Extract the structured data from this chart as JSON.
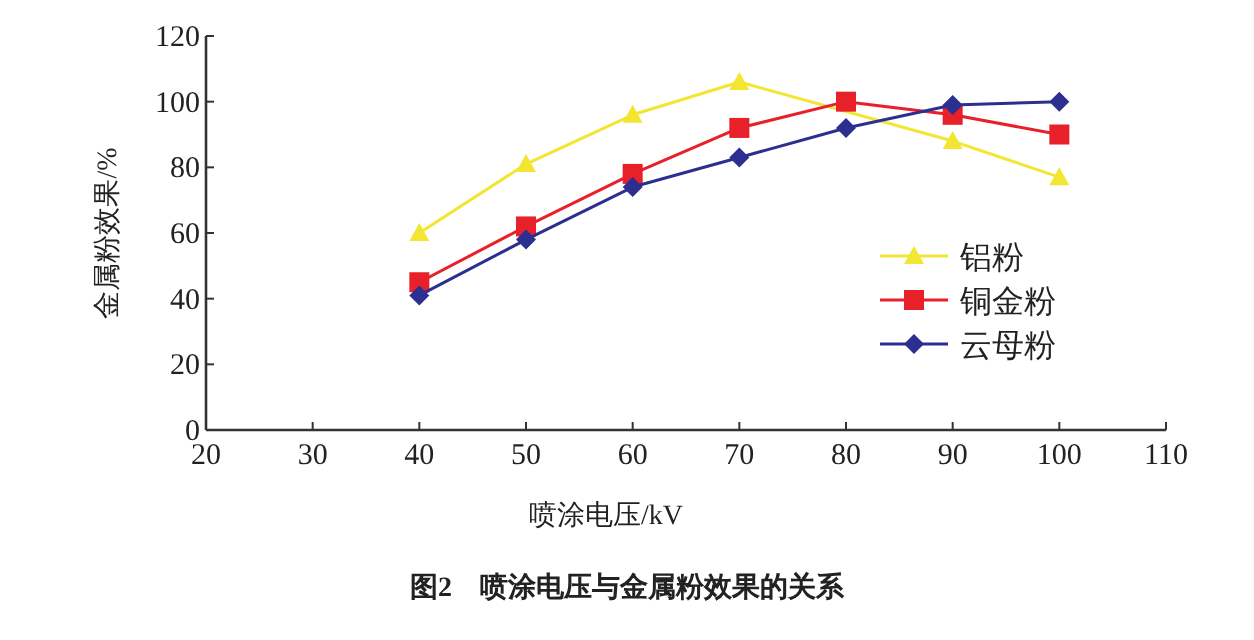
{
  "chart_data": {
    "type": "line",
    "title": "图2　喷涂电压与金属粉效果的关系",
    "xlabel": "喷涂电压/kV",
    "ylabel": "金属粉效果/%",
    "x": [
      40,
      50,
      60,
      70,
      80,
      90,
      100
    ],
    "xlim": [
      20,
      110
    ],
    "xticks": [
      20,
      30,
      40,
      50,
      60,
      70,
      80,
      90,
      100,
      110
    ],
    "ylim": [
      0,
      120
    ],
    "yticks": [
      0,
      20,
      40,
      60,
      80,
      100,
      120
    ],
    "grid": false,
    "legend": "right",
    "series": [
      {
        "name": "铝粉",
        "color": "#f2e632",
        "marker": "triangle",
        "values": [
          60,
          81,
          96,
          106,
          null,
          88,
          77
        ]
      },
      {
        "name": "铜金粉",
        "color": "#e8202a",
        "marker": "square",
        "values": [
          45,
          62,
          78,
          92,
          100,
          96,
          90
        ]
      },
      {
        "name": "云母粉",
        "color": "#2b2f8f",
        "marker": "diamond",
        "values": [
          41,
          58,
          74,
          83,
          92,
          99,
          100
        ]
      }
    ]
  }
}
